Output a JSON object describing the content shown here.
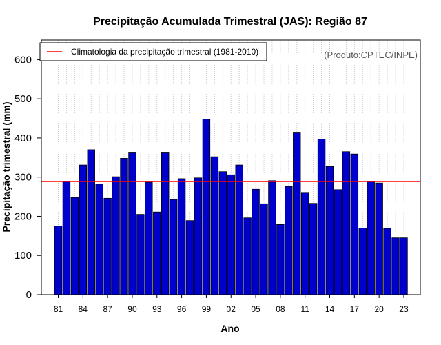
{
  "chart_data": {
    "type": "bar",
    "title": "Precipitação Acumulada Trimestral (JAS): Região 87",
    "xlabel": "Ano",
    "ylabel": "Precipitação trimestral (mm)",
    "ylim": [
      0,
      650
    ],
    "yticks": [
      0,
      100,
      200,
      300,
      400,
      500,
      600
    ],
    "x_tick_labels": [
      "81",
      "84",
      "87",
      "90",
      "93",
      "96",
      "99",
      "02",
      "05",
      "08",
      "11",
      "14",
      "17",
      "20",
      "23"
    ],
    "categories": [
      "1981",
      "1982",
      "1983",
      "1984",
      "1985",
      "1986",
      "1987",
      "1988",
      "1989",
      "1990",
      "1991",
      "1992",
      "1993",
      "1994",
      "1995",
      "1996",
      "1997",
      "1998",
      "1999",
      "2000",
      "2001",
      "2002",
      "2003",
      "2004",
      "2005",
      "2006",
      "2007",
      "2008",
      "2009",
      "2010",
      "2011",
      "2012",
      "2013",
      "2014",
      "2015",
      "2016",
      "2017",
      "2018",
      "2019",
      "2020",
      "2021",
      "2022",
      "2023"
    ],
    "values": [
      175,
      289,
      248,
      331,
      370,
      282,
      246,
      301,
      348,
      362,
      205,
      287,
      211,
      362,
      243,
      296,
      189,
      298,
      448,
      352,
      314,
      306,
      331,
      196,
      269,
      232,
      291,
      179,
      276,
      413,
      261,
      233,
      397,
      327,
      268,
      365,
      359,
      170,
      289,
      285,
      169,
      145,
      145
    ],
    "climatology": {
      "label": "Climatologia da precipitação trimestral (1981-2010)",
      "value": 289
    },
    "legend_position": "top-left",
    "grid": "vertical dotted",
    "annotation": "(Produto:CPTEC/INPE)"
  },
  "colors": {
    "bar_fill": "#0000cc",
    "bar_stroke": "#000000",
    "climatology_line": "#ff0000",
    "grid": "#cccccc",
    "credit_text": "#555555"
  }
}
